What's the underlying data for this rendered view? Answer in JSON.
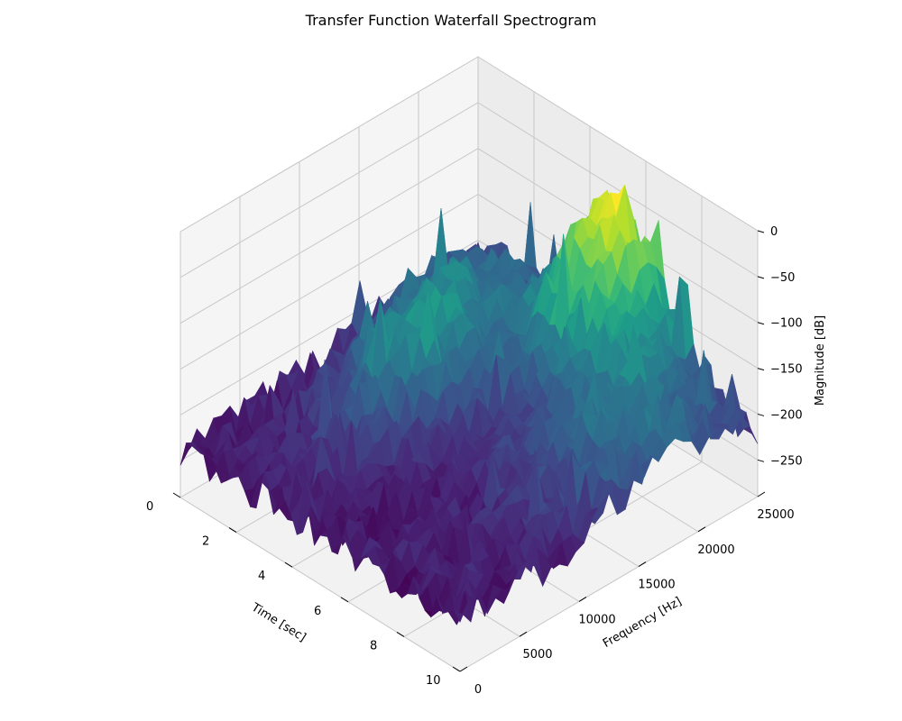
{
  "chart_data": {
    "type": "surface",
    "title": "Transfer Function Waterfall Spectrogram",
    "xlabel": "Time [sec]",
    "ylabel": "Frequency [Hz]",
    "zlabel": "Magnitude [dB]",
    "xlim": [
      0,
      10
    ],
    "ylim": [
      0,
      25000
    ],
    "zlim": [
      -290,
      0
    ],
    "x_ticks": [
      0,
      2,
      4,
      6,
      8,
      10
    ],
    "y_ticks": [
      0,
      5000,
      10000,
      15000,
      20000,
      25000
    ],
    "z_ticks": [
      0,
      -50,
      -100,
      -150,
      -200,
      -250
    ],
    "x_tick_labels": [
      "0",
      "2",
      "4",
      "6",
      "8",
      "10"
    ],
    "y_tick_labels": [
      "0",
      "5000",
      "10000",
      "15000",
      "20000",
      "25000"
    ],
    "z_tick_labels": [
      "0",
      "−50",
      "−100",
      "−150",
      "−200",
      "−250"
    ],
    "colormap": "viridis",
    "grid": true,
    "view": {
      "elevation": 30,
      "azimuth": -135
    },
    "features": [
      {
        "region": "x 0-2, y 0-5000",
        "magnitude_db": -230
      },
      {
        "region": "x 2-4, y 5000-20000",
        "magnitude_db": -150
      },
      {
        "region": "x 4-6, y 20000-25000 (peak)",
        "magnitude_db": -40
      },
      {
        "region": "x 6-10, y 10000-25000",
        "magnitude_db": -180
      }
    ]
  }
}
